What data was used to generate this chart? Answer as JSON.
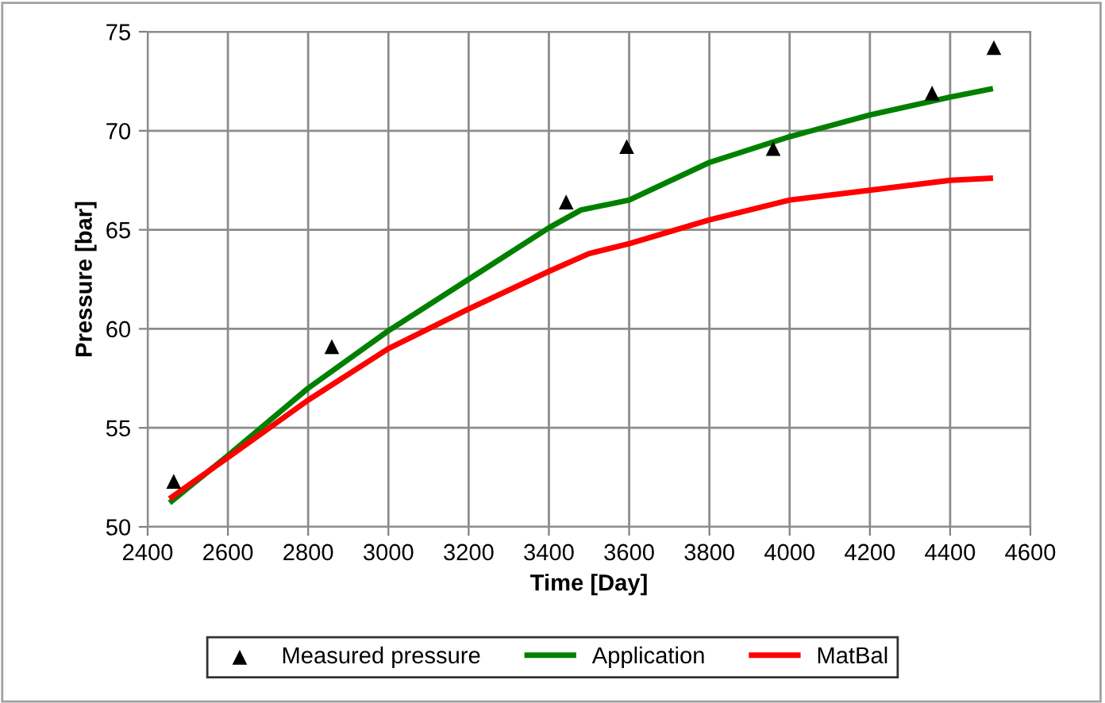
{
  "chart_data": {
    "type": "line",
    "xlabel": "Time [Day]",
    "ylabel": "Pressure [bar]",
    "xlim": [
      2400,
      4600
    ],
    "xticks": [
      2400,
      2600,
      2800,
      3000,
      3200,
      3400,
      3600,
      3800,
      4000,
      4200,
      4400,
      4600
    ],
    "ylim": [
      50,
      75
    ],
    "yticks": [
      50,
      55,
      60,
      65,
      70,
      75
    ],
    "grid": true,
    "legend": "bottom",
    "series": [
      {
        "name": "Measured pressure",
        "type": "scatter",
        "marker": "triangle",
        "color": "#000000",
        "x": [
          2465,
          2859,
          3443,
          3594,
          3959,
          4355,
          4509
        ],
        "values": [
          52.3,
          59.1,
          66.4,
          69.2,
          69.1,
          71.9,
          74.2
        ]
      },
      {
        "name": "Application",
        "color": "#008000",
        "x": [
          2460,
          2600,
          2800,
          3000,
          3200,
          3400,
          3480,
          3600,
          3800,
          4000,
          4200,
          4400,
          4500
        ],
        "values": [
          51.3,
          53.6,
          57.0,
          59.9,
          62.5,
          65.1,
          66.0,
          66.5,
          68.4,
          69.7,
          70.8,
          71.7,
          72.1
        ]
      },
      {
        "name": "MatBal",
        "color": "#ff0000",
        "x": [
          2460,
          2600,
          2800,
          3000,
          3200,
          3400,
          3500,
          3600,
          3800,
          4000,
          4200,
          4400,
          4500
        ],
        "values": [
          51.5,
          53.5,
          56.4,
          59.0,
          61.0,
          62.9,
          63.8,
          64.3,
          65.5,
          66.5,
          67.0,
          67.5,
          67.6
        ]
      }
    ]
  }
}
